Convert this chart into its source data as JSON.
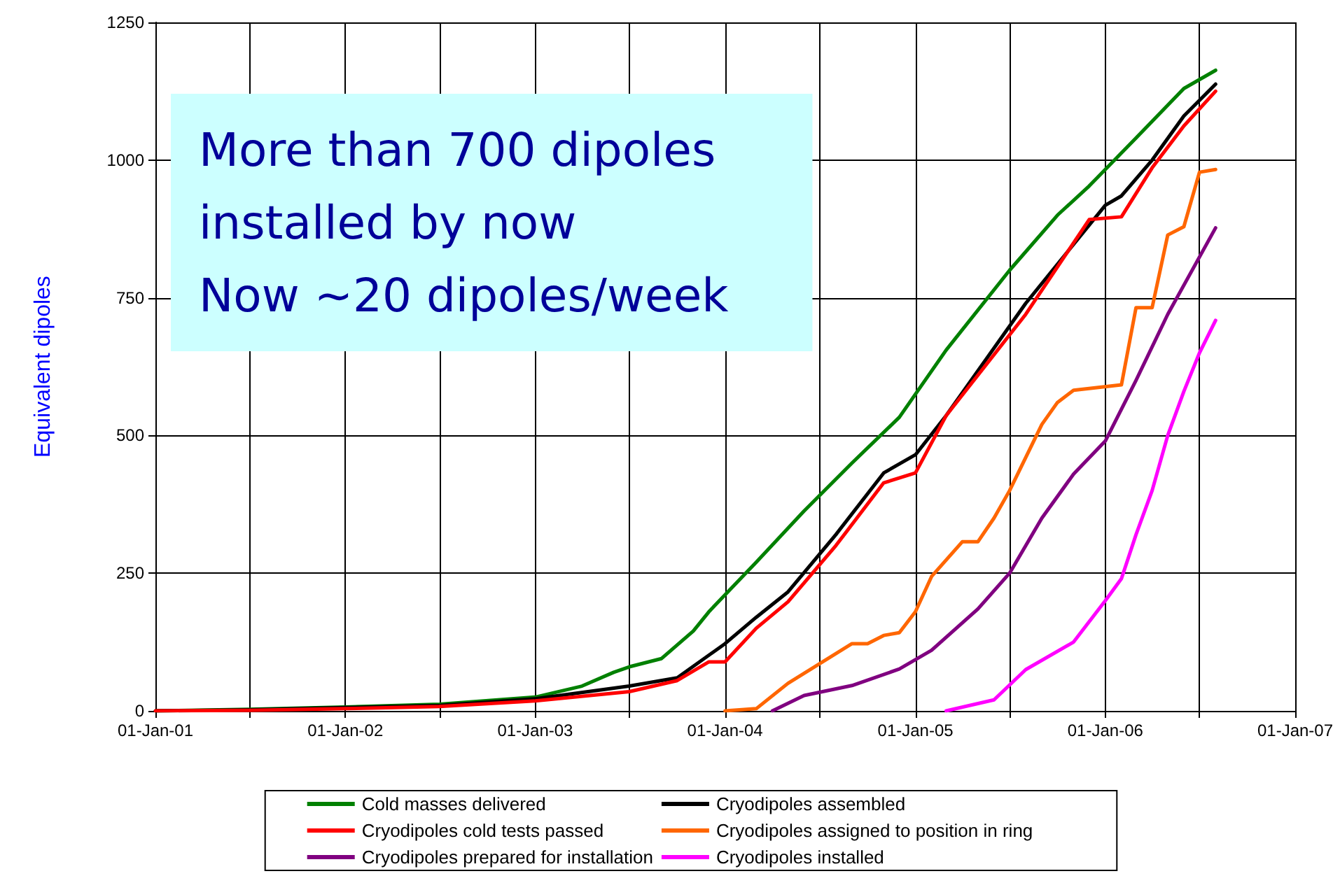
{
  "chart_data": {
    "type": "line",
    "ylabel": "Equivalent dipoles",
    "annotations": [
      "More than 700 dipoles\ninstalled by now\nNow ~20 dipoles/week"
    ],
    "xlim": [
      "2001-01-01",
      "2007-01-01"
    ],
    "xticks": [
      {
        "value": "2001-01-01",
        "label": "01-Jan-01"
      },
      {
        "value": "2001-07-01",
        "label": null
      },
      {
        "value": "2002-01-01",
        "label": "01-Jan-02"
      },
      {
        "value": "2002-07-01",
        "label": null
      },
      {
        "value": "2003-01-01",
        "label": "01-Jan-03"
      },
      {
        "value": "2003-07-01",
        "label": null
      },
      {
        "value": "2004-01-01",
        "label": "01-Jan-04"
      },
      {
        "value": "2004-07-01",
        "label": null
      },
      {
        "value": "2005-01-01",
        "label": "01-Jan-05"
      },
      {
        "value": "2005-07-01",
        "label": null
      },
      {
        "value": "2006-01-01",
        "label": "01-Jan-06"
      },
      {
        "value": "2006-07-01",
        "label": null
      },
      {
        "value": "2007-01-01",
        "label": "01-Jan-07"
      }
    ],
    "ylim": [
      0,
      1250
    ],
    "yticks": [
      0,
      250,
      500,
      750,
      1000,
      1250
    ],
    "grid": true,
    "legend": "bottom",
    "marker": "none",
    "line_style": "solid",
    "series": [
      {
        "name": "Cold masses delivered",
        "color": "#008000",
        "x": [
          "2001-01",
          "2001-07",
          "2002-01",
          "2002-07",
          "2003-01",
          "2003-04",
          "2003-06",
          "2003-07",
          "2003-09",
          "2003-11",
          "2003-12",
          "2004-03",
          "2004-06",
          "2004-09",
          "2004-12",
          "2005-03",
          "2005-07",
          "2005-10",
          "2005-12",
          "2006-03",
          "2006-06",
          "2006-08"
        ],
        "values": [
          0,
          3,
          7,
          12,
          25,
          45,
          70,
          80,
          95,
          145,
          180,
          270,
          363,
          450,
          533,
          655,
          800,
          900,
          953,
          1040,
          1130,
          1163
        ]
      },
      {
        "name": "Cryodipoles assembled",
        "color": "#000000",
        "x": [
          "2001-01",
          "2001-07",
          "2002-01",
          "2002-07",
          "2003-01",
          "2003-07",
          "2003-10",
          "2004-01",
          "2004-03",
          "2004-05",
          "2004-08",
          "2004-11",
          "2005-01",
          "2005-03",
          "2005-08",
          "2006-01",
          "2006-02",
          "2006-04",
          "2006-06",
          "2006-08"
        ],
        "values": [
          0,
          2,
          6,
          10,
          22,
          45,
          60,
          122,
          170,
          216,
          320,
          432,
          465,
          536,
          740,
          918,
          935,
          1000,
          1080,
          1138
        ]
      },
      {
        "name": "Cryodipoles cold tests passed",
        "color": "#ff0000",
        "x": [
          "2001-01",
          "2001-07",
          "2002-01",
          "2002-07",
          "2003-01",
          "2003-07",
          "2003-10",
          "2003-12",
          "2004-01",
          "2004-03",
          "2004-05",
          "2004-08",
          "2004-11",
          "2005-01",
          "2005-03",
          "2005-08",
          "2005-12",
          "2006-02",
          "2006-04",
          "2006-06",
          "2006-08"
        ],
        "values": [
          0,
          1,
          4,
          8,
          18,
          35,
          55,
          89,
          89,
          150,
          198,
          300,
          414,
          432,
          536,
          720,
          892,
          897,
          986,
          1062,
          1125
        ]
      },
      {
        "name": "Cryodipoles assigned to position in ring",
        "color": "#ff6600",
        "x": [
          "2004-01",
          "2004-03",
          "2004-05",
          "2004-09",
          "2004-10",
          "2004-11",
          "2004-12",
          "2005-01",
          "2005-02",
          "2005-04",
          "2005-05",
          "2005-06",
          "2005-07",
          "2005-08",
          "2005-09",
          "2005-10",
          "2005-11",
          "2006-02",
          "2006-03",
          "2006-04",
          "2006-05",
          "2006-06",
          "2006-07",
          "2006-08"
        ],
        "values": [
          0,
          4,
          50,
          122,
          122,
          137,
          142,
          180,
          244,
          307,
          307,
          350,
          400,
          460,
          520,
          560,
          582,
          592,
          732,
          732,
          864,
          879,
          978,
          983
        ]
      },
      {
        "name": "Cryodipoles prepared for installation",
        "color": "#800080",
        "x": [
          "2004-04",
          "2004-06",
          "2004-09",
          "2004-12",
          "2005-02",
          "2005-05",
          "2005-07",
          "2005-09",
          "2005-11",
          "2006-01",
          "2006-03",
          "2006-05",
          "2006-08"
        ],
        "values": [
          0,
          28,
          46,
          76,
          110,
          185,
          250,
          350,
          430,
          490,
          600,
          720,
          877
        ]
      },
      {
        "name": "Cryodipoles installed",
        "color": "#ff00ff",
        "x": [
          "2005-03",
          "2005-06",
          "2005-08",
          "2005-11",
          "2006-01",
          "2006-02",
          "2006-03",
          "2006-04",
          "2006-05",
          "2006-06",
          "2006-07",
          "2006-08"
        ],
        "values": [
          0,
          20,
          75,
          125,
          200,
          240,
          320,
          400,
          500,
          580,
          650,
          709
        ]
      }
    ]
  }
}
